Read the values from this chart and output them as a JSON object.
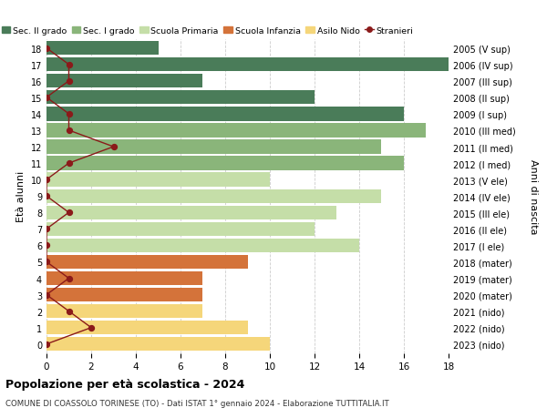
{
  "ages": [
    18,
    17,
    16,
    15,
    14,
    13,
    12,
    11,
    10,
    9,
    8,
    7,
    6,
    5,
    4,
    3,
    2,
    1,
    0
  ],
  "right_labels": [
    "2005 (V sup)",
    "2006 (IV sup)",
    "2007 (III sup)",
    "2008 (II sup)",
    "2009 (I sup)",
    "2010 (III med)",
    "2011 (II med)",
    "2012 (I med)",
    "2013 (V ele)",
    "2014 (IV ele)",
    "2015 (III ele)",
    "2016 (II ele)",
    "2017 (I ele)",
    "2018 (mater)",
    "2019 (mater)",
    "2020 (mater)",
    "2021 (nido)",
    "2022 (nido)",
    "2023 (nido)"
  ],
  "bar_values": [
    5,
    18,
    7,
    12,
    16,
    17,
    15,
    16,
    10,
    15,
    13,
    12,
    14,
    9,
    7,
    7,
    7,
    9,
    10
  ],
  "bar_colors": [
    "#4a7c59",
    "#4a7c59",
    "#4a7c59",
    "#4a7c59",
    "#4a7c59",
    "#8ab57a",
    "#8ab57a",
    "#8ab57a",
    "#c5dea8",
    "#c5dea8",
    "#c5dea8",
    "#c5dea8",
    "#c5dea8",
    "#d4733a",
    "#d4733a",
    "#d4733a",
    "#f5d67a",
    "#f5d67a",
    "#f5d67a"
  ],
  "stranieri_values": [
    0,
    1,
    1,
    0,
    1,
    1,
    3,
    1,
    0,
    0,
    1,
    0,
    0,
    0,
    1,
    0,
    1,
    2,
    0
  ],
  "stranieri_color": "#8b1a1a",
  "title": "Popolazione per età scolastica - 2024",
  "subtitle": "COMUNE DI COASSOLO TORINESE (TO) - Dati ISTAT 1° gennaio 2024 - Elaborazione TUTTITALIA.IT",
  "ylabel_left": "Età alunni",
  "ylabel_right": "Anni di nascita",
  "xlim": [
    0,
    18
  ],
  "xticks": [
    0,
    2,
    4,
    6,
    8,
    10,
    12,
    14,
    16,
    18
  ],
  "legend_labels": [
    "Sec. II grado",
    "Sec. I grado",
    "Scuola Primaria",
    "Scuola Infanzia",
    "Asilo Nido",
    "Stranieri"
  ],
  "legend_colors": [
    "#4a7c59",
    "#8ab57a",
    "#c5dea8",
    "#d4733a",
    "#f5d67a",
    "#8b1a1a"
  ],
  "bg_color": "#ffffff",
  "grid_color": "#cccccc",
  "bar_height": 0.85
}
